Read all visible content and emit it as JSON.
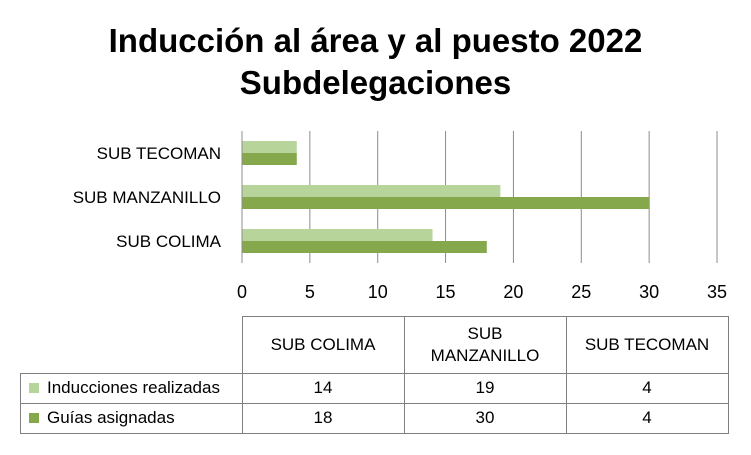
{
  "title_line1": "Inducción al área y al puesto 2022",
  "title_line2": "Subdelegaciones",
  "colors": {
    "light": "#b7d49a",
    "dark": "#86a84c",
    "grid": "#8c8c8c",
    "axis": "#8c8c8c"
  },
  "chart_data": {
    "type": "bar",
    "orientation": "horizontal",
    "categories": [
      "SUB COLIMA",
      "SUB MANZANILLO",
      "SUB TECOMAN"
    ],
    "series": [
      {
        "name": "Inducciones realizadas",
        "values": [
          14,
          19,
          4
        ],
        "color": "#b7d49a"
      },
      {
        "name": "Guias asignadas",
        "values": [
          18,
          30,
          4
        ],
        "color": "#86a84c"
      }
    ],
    "xlim": [
      0,
      35
    ],
    "xticks": [
      "0",
      "5",
      "10",
      "15",
      "20",
      "25",
      "30",
      "35"
    ],
    "grid": true,
    "legend": "data-table"
  },
  "table": {
    "headers": [
      "SUB COLIMA",
      "SUB\nMANZANILLO",
      "SUB TECOMAN"
    ],
    "rows": [
      {
        "label": "Inducciones realizadas",
        "values": [
          "14",
          "19",
          "4"
        ]
      },
      {
        "label": "Guías asignadas",
        "values": [
          "18",
          "30",
          "4"
        ]
      }
    ]
  }
}
